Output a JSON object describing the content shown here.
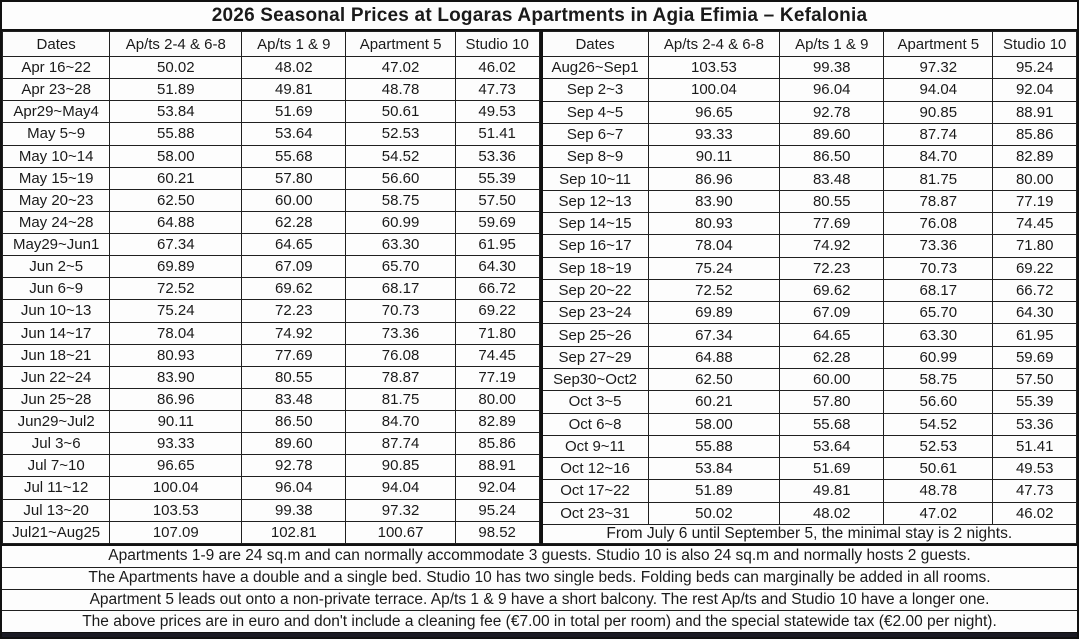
{
  "title": "2026 Seasonal Prices at Logaras Apartments in Agia Efimia – Kefalonia",
  "columns": [
    "Dates",
    "Ap/ts 2-4 & 6-8",
    "Ap/ts 1 & 9",
    "Apartment 5",
    "Studio 10"
  ],
  "left_table": {
    "rows": [
      [
        "Apr 16~22",
        "50.02",
        "48.02",
        "47.02",
        "46.02"
      ],
      [
        "Apr 23~28",
        "51.89",
        "49.81",
        "48.78",
        "47.73"
      ],
      [
        "Apr29~May4",
        "53.84",
        "51.69",
        "50.61",
        "49.53"
      ],
      [
        "May 5~9",
        "55.88",
        "53.64",
        "52.53",
        "51.41"
      ],
      [
        "May 10~14",
        "58.00",
        "55.68",
        "54.52",
        "53.36"
      ],
      [
        "May 15~19",
        "60.21",
        "57.80",
        "56.60",
        "55.39"
      ],
      [
        "May 20~23",
        "62.50",
        "60.00",
        "58.75",
        "57.50"
      ],
      [
        "May 24~28",
        "64.88",
        "62.28",
        "60.99",
        "59.69"
      ],
      [
        "May29~Jun1",
        "67.34",
        "64.65",
        "63.30",
        "61.95"
      ],
      [
        "Jun 2~5",
        "69.89",
        "67.09",
        "65.70",
        "64.30"
      ],
      [
        "Jun 6~9",
        "72.52",
        "69.62",
        "68.17",
        "66.72"
      ],
      [
        "Jun 10~13",
        "75.24",
        "72.23",
        "70.73",
        "69.22"
      ],
      [
        "Jun 14~17",
        "78.04",
        "74.92",
        "73.36",
        "71.80"
      ],
      [
        "Jun 18~21",
        "80.93",
        "77.69",
        "76.08",
        "74.45"
      ],
      [
        "Jun 22~24",
        "83.90",
        "80.55",
        "78.87",
        "77.19"
      ],
      [
        "Jun 25~28",
        "86.96",
        "83.48",
        "81.75",
        "80.00"
      ],
      [
        "Jun29~Jul2",
        "90.11",
        "86.50",
        "84.70",
        "82.89"
      ],
      [
        "Jul 3~6",
        "93.33",
        "89.60",
        "87.74",
        "85.86"
      ],
      [
        "Jul 7~10",
        "96.65",
        "92.78",
        "90.85",
        "88.91"
      ],
      [
        "Jul 11~12",
        "100.04",
        "96.04",
        "94.04",
        "92.04"
      ],
      [
        "Jul 13~20",
        "103.53",
        "99.38",
        "97.32",
        "95.24"
      ],
      [
        "Jul21~Aug25",
        "107.09",
        "102.81",
        "100.67",
        "98.52"
      ]
    ]
  },
  "right_table": {
    "rows": [
      [
        "Aug26~Sep1",
        "103.53",
        "99.38",
        "97.32",
        "95.24"
      ],
      [
        "Sep 2~3",
        "100.04",
        "96.04",
        "94.04",
        "92.04"
      ],
      [
        "Sep 4~5",
        "96.65",
        "92.78",
        "90.85",
        "88.91"
      ],
      [
        "Sep 6~7",
        "93.33",
        "89.60",
        "87.74",
        "85.86"
      ],
      [
        "Sep 8~9",
        "90.11",
        "86.50",
        "84.70",
        "82.89"
      ],
      [
        "Sep 10~11",
        "86.96",
        "83.48",
        "81.75",
        "80.00"
      ],
      [
        "Sep 12~13",
        "83.90",
        "80.55",
        "78.87",
        "77.19"
      ],
      [
        "Sep 14~15",
        "80.93",
        "77.69",
        "76.08",
        "74.45"
      ],
      [
        "Sep 16~17",
        "78.04",
        "74.92",
        "73.36",
        "71.80"
      ],
      [
        "Sep 18~19",
        "75.24",
        "72.23",
        "70.73",
        "69.22"
      ],
      [
        "Sep 20~22",
        "72.52",
        "69.62",
        "68.17",
        "66.72"
      ],
      [
        "Sep 23~24",
        "69.89",
        "67.09",
        "65.70",
        "64.30"
      ],
      [
        "Sep 25~26",
        "67.34",
        "64.65",
        "63.30",
        "61.95"
      ],
      [
        "Sep 27~29",
        "64.88",
        "62.28",
        "60.99",
        "59.69"
      ],
      [
        "Sep30~Oct2",
        "62.50",
        "60.00",
        "58.75",
        "57.50"
      ],
      [
        "Oct 3~5",
        "60.21",
        "57.80",
        "56.60",
        "55.39"
      ],
      [
        "Oct 6~8",
        "58.00",
        "55.68",
        "54.52",
        "53.36"
      ],
      [
        "Oct 9~11",
        "55.88",
        "53.64",
        "52.53",
        "51.41"
      ],
      [
        "Oct 12~16",
        "53.84",
        "51.69",
        "50.61",
        "49.53"
      ],
      [
        "Oct 17~22",
        "51.89",
        "49.81",
        "48.78",
        "47.73"
      ],
      [
        "Oct 23~31",
        "50.02",
        "48.02",
        "47.02",
        "46.02"
      ]
    ],
    "note": "From July 6 until September 5, the minimal stay is 2 nights."
  },
  "footnotes": [
    "Apartments 1-9 are 24 sq.m and can normally accommodate 3 guests. Studio 10 is also 24 sq.m and normally hosts 2 guests.",
    "The Apartments have a double and a single bed. Studio 10 has two single beds. Folding beds can marginally be added in all rooms.",
    "Apartment 5 leads out onto a non-private terrace. Ap/ts 1 & 9 have a short balcony. The rest Ap/ts and Studio 10 have a longer one.",
    "The above prices are in euro and don't include a cleaning fee (€7.00 in total per room) and the special statewide tax (€2.00 per night)."
  ],
  "colors": {
    "text": "#1a1a1a",
    "border": "#202020",
    "background": "#fdfdfd",
    "bottom_strip": "#1b1b24"
  }
}
